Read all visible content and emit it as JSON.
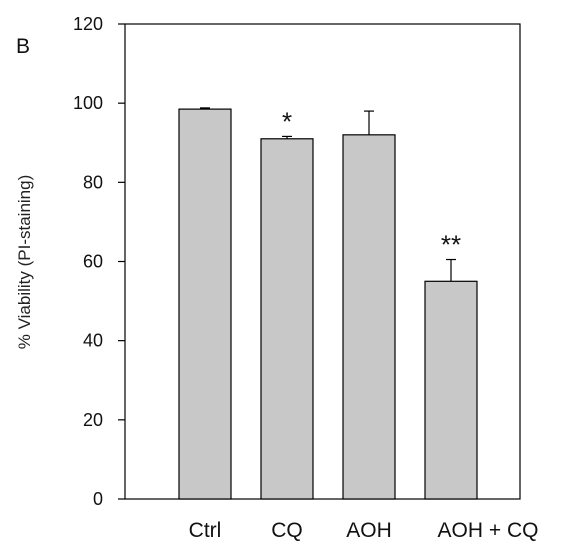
{
  "panel_label": "B",
  "chart_data": {
    "type": "bar",
    "ylabel": "% Viability (PI-staining)",
    "xlabel": "",
    "ylim": [
      0,
      120
    ],
    "yticks": [
      0,
      20,
      40,
      60,
      80,
      100,
      120
    ],
    "categories": [
      "Ctrl",
      "CQ",
      "AOH",
      "AOH + CQ"
    ],
    "values": [
      98.5,
      91,
      92,
      55
    ],
    "error_bars": [
      0.3,
      0.6,
      6,
      5.5
    ],
    "significance": [
      "",
      "*",
      "",
      "**"
    ],
    "grid": false,
    "bar_color": "#c8c8c8",
    "edge_color": "#000000"
  }
}
